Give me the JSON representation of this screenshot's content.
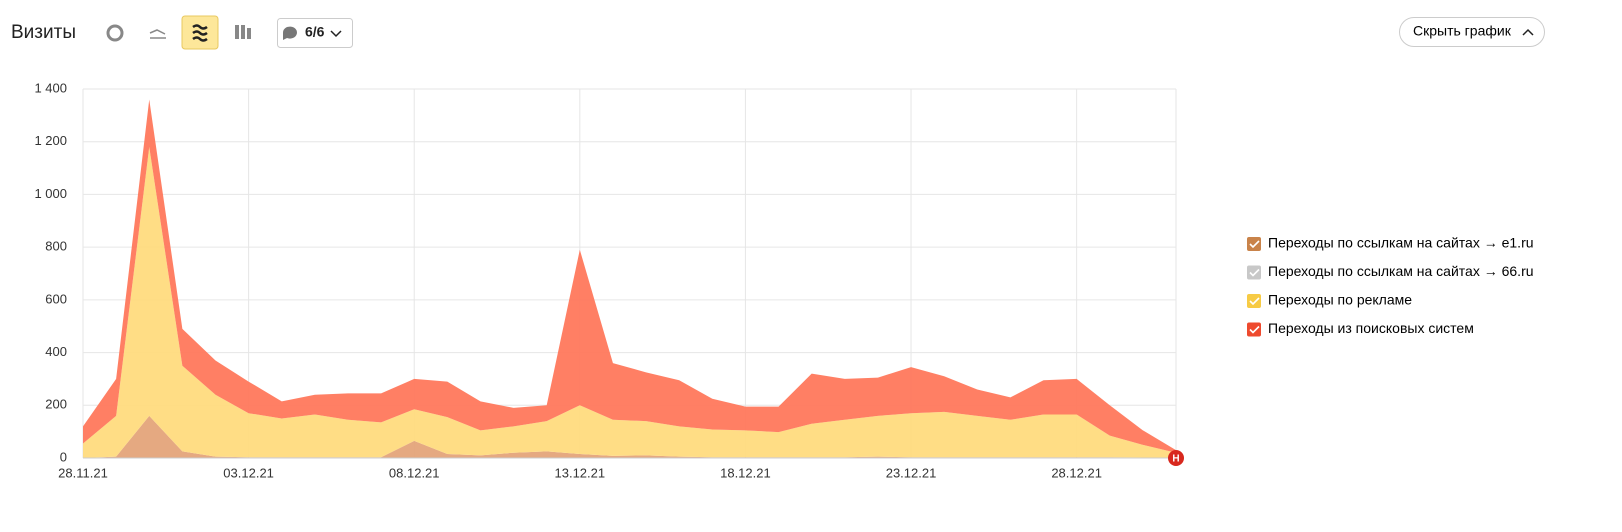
{
  "header": {
    "title": "Визиты",
    "segments_button": "6/6",
    "hide_button": "Скрыть график"
  },
  "chart_data": {
    "type": "stacked_area",
    "categories": [
      "28.11.21",
      null,
      null,
      null,
      null,
      "03.12.21",
      null,
      null,
      null,
      null,
      "08.12.21",
      null,
      null,
      null,
      null,
      "13.12.21",
      null,
      null,
      null,
      null,
      "18.12.21",
      null,
      null,
      null,
      null,
      "23.12.21",
      null,
      null,
      null,
      null,
      "28.12.21",
      null,
      null,
      null
    ],
    "highlighted_categories": [
      0,
      20
    ],
    "highlight_color": "#c0392b",
    "series": [
      {
        "name": "Переходы по ссылкам на сайтах → e1.ru",
        "color": "#e4a47a",
        "legend_color": "#c9834a",
        "visible": true,
        "values": [
          0,
          5,
          160,
          25,
          5,
          3,
          3,
          3,
          3,
          3,
          65,
          15,
          10,
          20,
          25,
          15,
          8,
          10,
          5,
          3,
          3,
          3,
          3,
          3,
          5,
          3,
          3,
          3,
          3,
          3,
          3,
          3,
          2,
          1
        ]
      },
      {
        "name": "Переходы по ссылкам на сайтах → 66.ru",
        "color": "#c8c8c8",
        "legend_color": "#c8c8c8",
        "visible": false
      },
      {
        "name": "Переходы по рекламе",
        "color": "#ffdb7e",
        "legend_color": "#f7cb45",
        "visible": true,
        "values": [
          55,
          155,
          1020,
          325,
          235,
          167,
          147,
          162,
          142,
          132,
          120,
          140,
          95,
          100,
          115,
          185,
          137,
          130,
          115,
          105,
          102,
          95,
          127,
          142,
          155,
          167,
          172,
          157,
          142,
          162,
          162,
          82,
          48,
          19
        ]
      },
      {
        "name": "Переходы из поисковых систем",
        "color": "#ff785c",
        "legend_color": "#ee4a2e",
        "visible": true,
        "values": [
          65,
          140,
          180,
          140,
          130,
          120,
          65,
          75,
          100,
          110,
          115,
          135,
          110,
          70,
          60,
          590,
          215,
          185,
          175,
          117,
          90,
          97,
          190,
          155,
          145,
          175,
          135,
          100,
          85,
          130,
          135,
          115,
          55,
          10
        ]
      }
    ],
    "ylim": [
      0,
      1400
    ],
    "yticks": [
      0,
      200,
      400,
      600,
      800,
      {
        "value": 1000,
        "label": "1 000"
      },
      {
        "value": 1200,
        "label": "1 200"
      },
      {
        "value": 1400,
        "label": "1 400"
      }
    ],
    "grid": true,
    "annotation": {
      "label": "Н",
      "index": 33,
      "color": "#d8281e"
    }
  }
}
